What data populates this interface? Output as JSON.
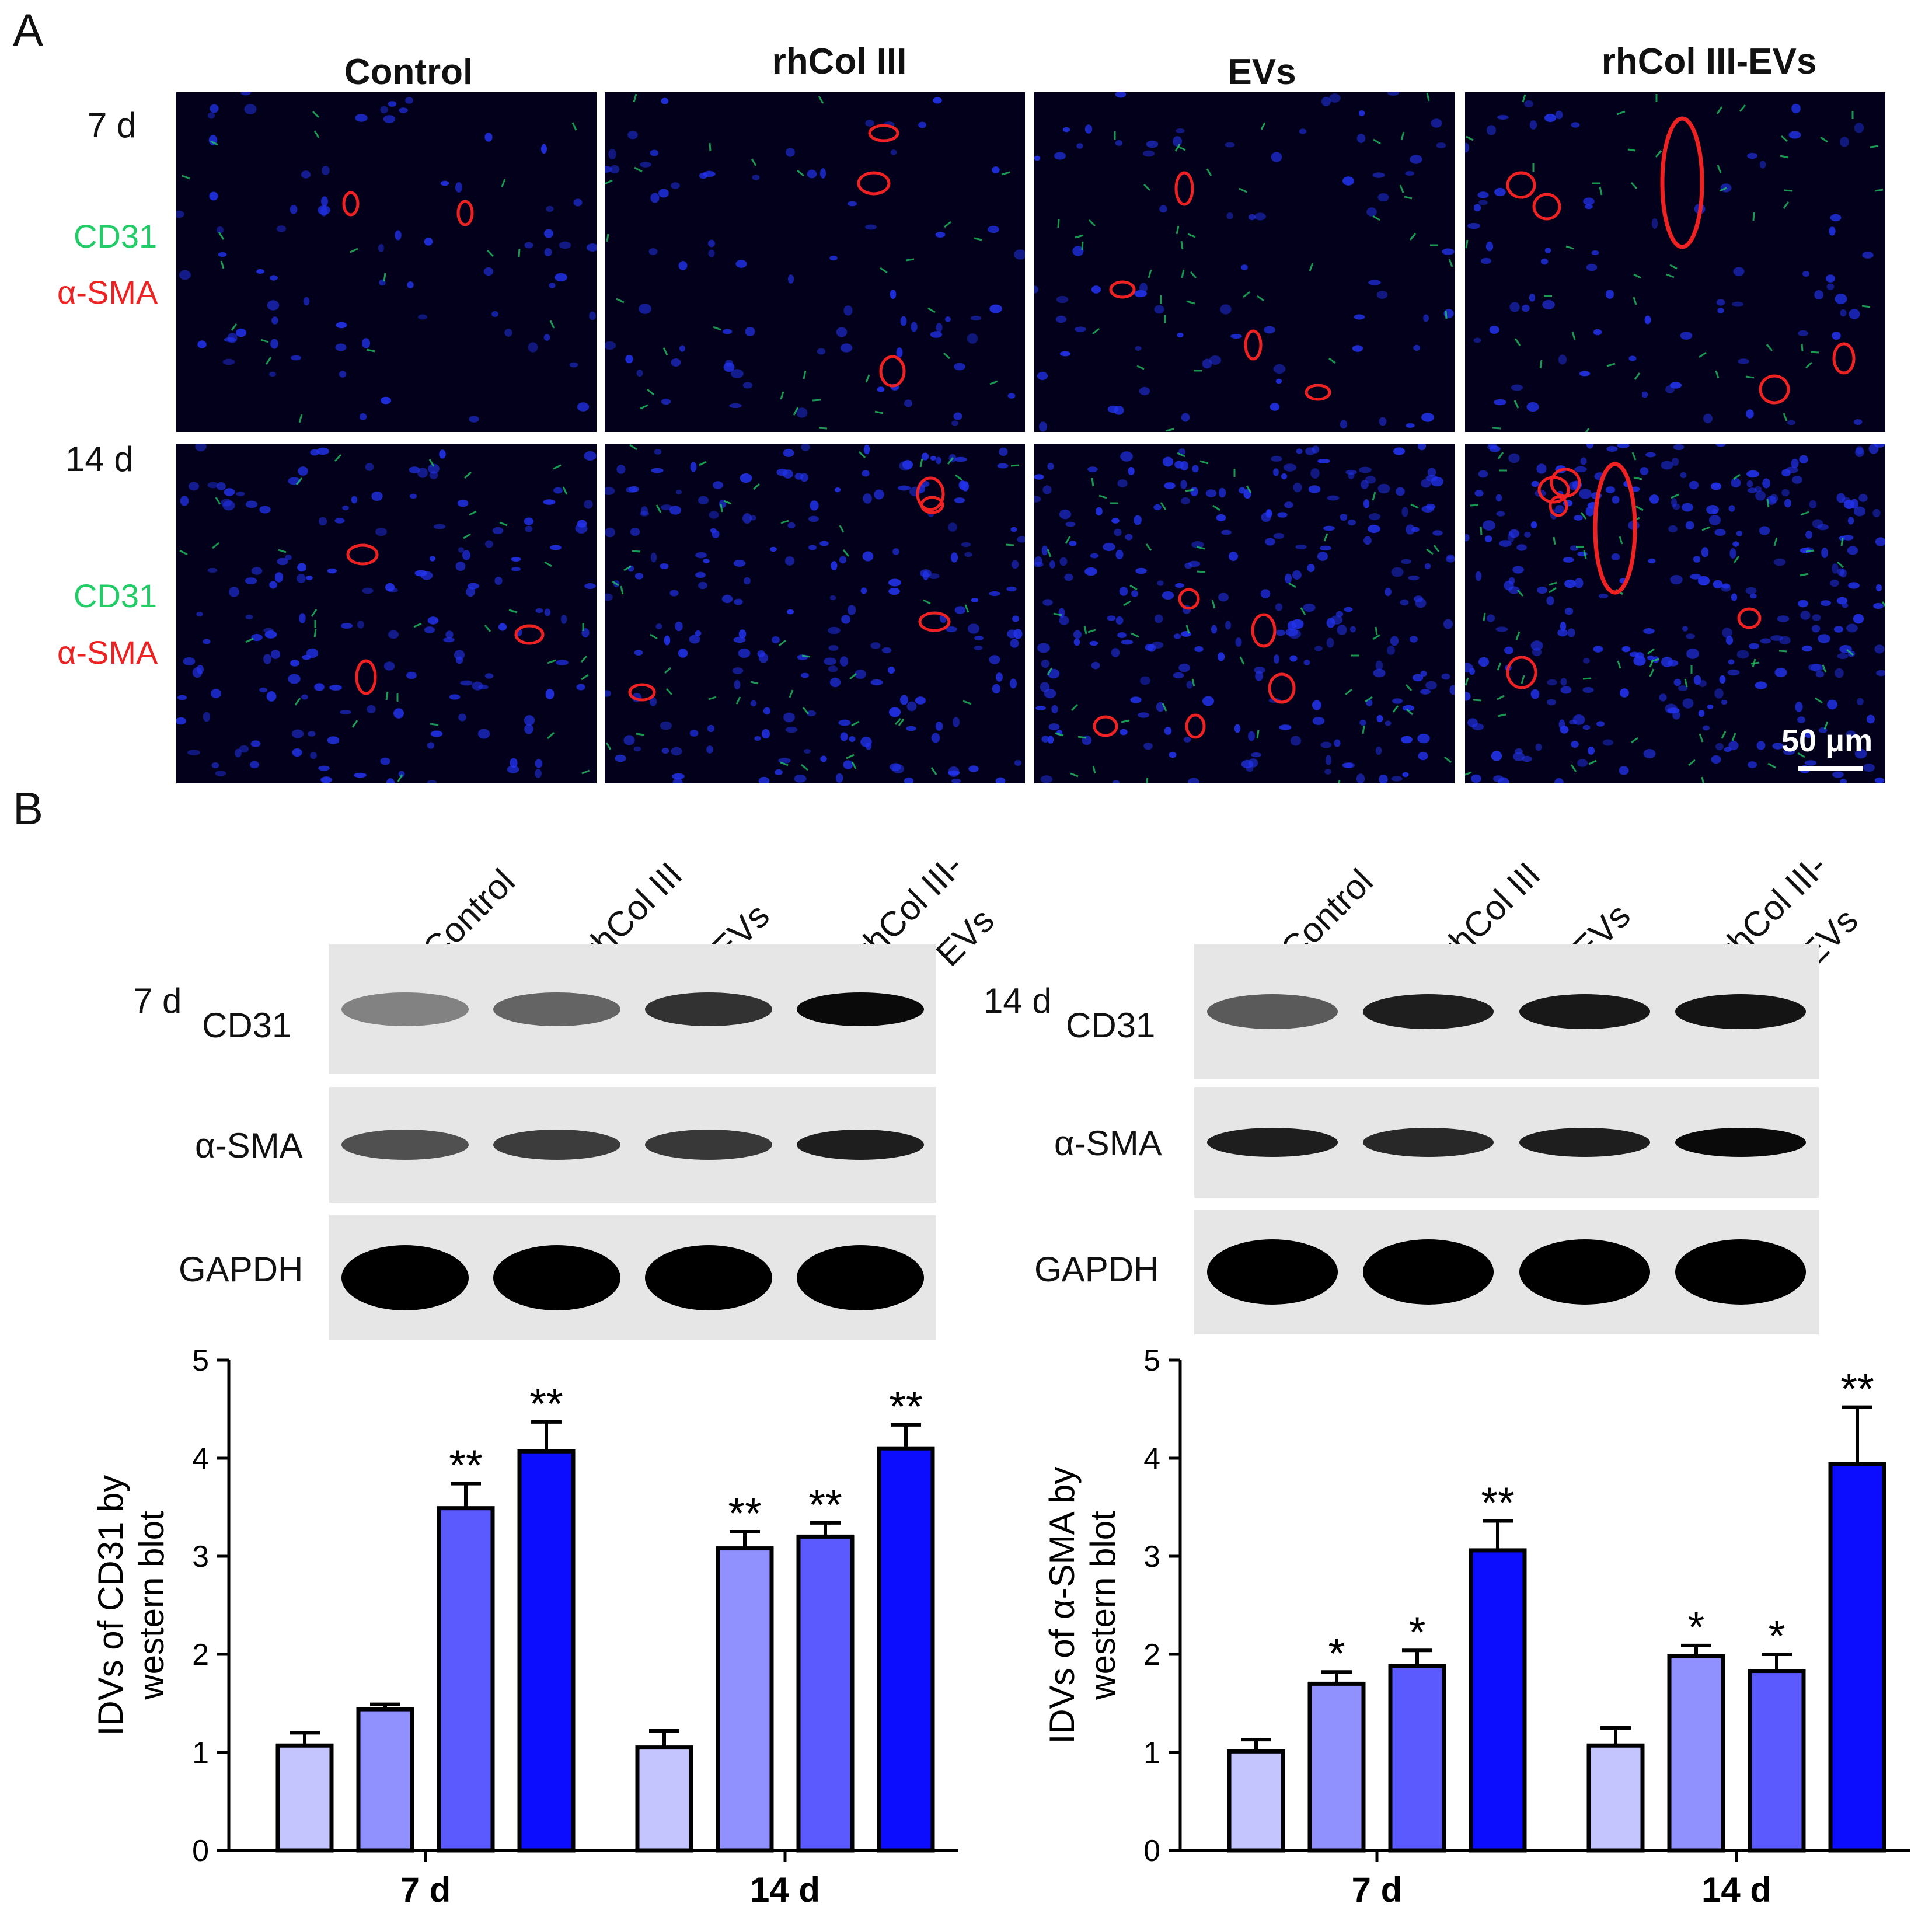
{
  "panel_a": {
    "letter": "A",
    "columns": [
      "Control",
      "rhCol III",
      "EVs",
      "rhCol III-EVs"
    ],
    "rows": [
      {
        "day": "7 d",
        "stain_green": "CD31",
        "stain_red": "α-SMA"
      },
      {
        "day": "14 d",
        "stain_green": "CD31",
        "stain_red": "α-SMA"
      }
    ],
    "scale_bar": "50 μm",
    "colors": {
      "green": "#22cc66",
      "red": "#ee2222",
      "nuclei": "#2233ee",
      "background": "#03001c"
    }
  },
  "panel_b": {
    "letter": "B",
    "blots": [
      {
        "day": "7 d",
        "lanes": [
          "Control",
          "rhCol III",
          "EVs",
          "rhCol III-",
          "EVs"
        ],
        "proteins": [
          "CD31",
          "α-SMA",
          "GAPDH"
        ]
      },
      {
        "day": "14 d",
        "lanes": [
          "Control",
          "rhCol III",
          "EVs",
          "rhCol III-",
          "EVs"
        ],
        "proteins": [
          "CD31",
          "α-SMA",
          "GAPDH"
        ]
      }
    ]
  },
  "chart_data": [
    {
      "type": "bar",
      "ylabel_line1": "IDVs of CD31 by",
      "ylabel_line2": "western blot",
      "ylim": [
        0,
        5
      ],
      "yticks": [
        "0",
        "1",
        "2",
        "3",
        "4",
        "5"
      ],
      "categories": [
        "7 d",
        "14 d"
      ],
      "series": [
        {
          "values": [
            1.07,
            1.05
          ],
          "errors": [
            0.13,
            0.17
          ],
          "sig": [
            "",
            ""
          ],
          "color": "#c4c4ff"
        },
        {
          "values": [
            1.44,
            3.08
          ],
          "errors": [
            0.05,
            0.17
          ],
          "sig": [
            "",
            "**"
          ],
          "color": "#9090ff"
        },
        {
          "values": [
            3.49,
            3.2
          ],
          "errors": [
            0.25,
            0.14
          ],
          "sig": [
            "**",
            "**"
          ],
          "color": "#5a5aff"
        },
        {
          "values": [
            4.07,
            4.1
          ],
          "errors": [
            0.3,
            0.24
          ],
          "sig": [
            "**",
            "**"
          ],
          "color": "#0c0cff"
        }
      ]
    },
    {
      "type": "bar",
      "ylabel_line1": "IDVs of α-SMA by",
      "ylabel_line2": "western blot",
      "ylim": [
        0,
        5
      ],
      "yticks": [
        "0",
        "1",
        "2",
        "3",
        "4",
        "5"
      ],
      "categories": [
        "7 d",
        "14 d"
      ],
      "series": [
        {
          "values": [
            1.01,
            1.07
          ],
          "errors": [
            0.12,
            0.18
          ],
          "sig": [
            "",
            ""
          ],
          "color": "#c4c4ff"
        },
        {
          "values": [
            1.7,
            1.98
          ],
          "errors": [
            0.12,
            0.11
          ],
          "sig": [
            "*",
            "*"
          ],
          "color": "#9090ff"
        },
        {
          "values": [
            1.88,
            1.83
          ],
          "errors": [
            0.16,
            0.17
          ],
          "sig": [
            "*",
            "*"
          ],
          "color": "#5a5aff"
        },
        {
          "values": [
            3.06,
            3.94
          ],
          "errors": [
            0.3,
            0.58
          ],
          "sig": [
            "**",
            "**"
          ],
          "color": "#0c0cff"
        }
      ]
    }
  ]
}
